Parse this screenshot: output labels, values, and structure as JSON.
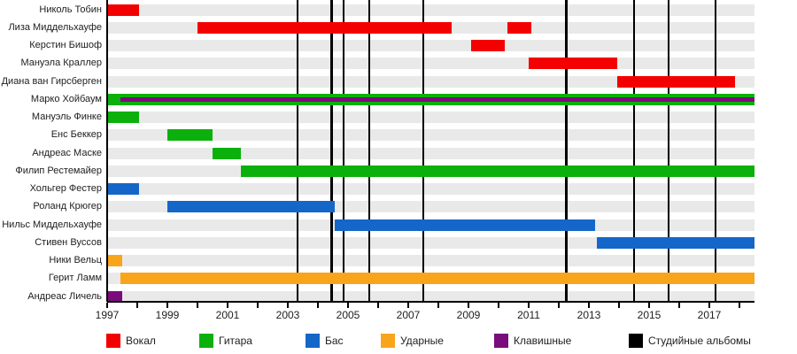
{
  "colors": {
    "vocals": "#f30000",
    "guitar": "#0cb00c",
    "bass": "#1467c8",
    "drums": "#f9a51b",
    "keyboards": "#7b0c7b",
    "albums": "#000000",
    "row_track": "#e9e9e9",
    "axis": "#000000",
    "background": "#ffffff"
  },
  "chart_data": {
    "type": "bar",
    "subtype": "band-membership-gantt-timeline",
    "title": "",
    "x_axis": {
      "start": 1997,
      "end": 2018.5,
      "tick_every_years": 1,
      "labeled_ticks": [
        "1997",
        "1999",
        "2001",
        "2003",
        "2005",
        "2007",
        "2009",
        "2011",
        "2013",
        "2015",
        "2017"
      ]
    },
    "rows": [
      {
        "name": "Николь Тобин",
        "bars": [
          {
            "from": 1997.0,
            "to": 1998.05,
            "role": "vocals"
          }
        ]
      },
      {
        "name": "Лиза Миддельхауфе",
        "bars": [
          {
            "from": 2000.0,
            "to": 2008.45,
            "role": "vocals"
          },
          {
            "from": 2010.3,
            "to": 2011.1,
            "role": "vocals"
          }
        ]
      },
      {
        "name": "Керстин Бишоф",
        "bars": [
          {
            "from": 2009.1,
            "to": 2010.2,
            "role": "vocals"
          }
        ]
      },
      {
        "name": "Мануэла Краллер",
        "bars": [
          {
            "from": 2011.0,
            "to": 2013.95,
            "role": "vocals"
          }
        ]
      },
      {
        "name": "Диана ван Гирсберген",
        "bars": [
          {
            "from": 2013.95,
            "to": 2017.85,
            "role": "vocals"
          }
        ]
      },
      {
        "name": "Марко Хойбаум",
        "bars": [
          {
            "from": 1997.0,
            "to": 2018.5,
            "role": "guitar"
          },
          {
            "from": 1997.45,
            "to": 2018.5,
            "role": "keyboards",
            "overlay": true
          }
        ]
      },
      {
        "name": "Мануэль Финке",
        "bars": [
          {
            "from": 1997.0,
            "to": 1998.05,
            "role": "guitar"
          }
        ]
      },
      {
        "name": "Енс Беккер",
        "bars": [
          {
            "from": 1999.0,
            "to": 2000.5,
            "role": "guitar"
          }
        ]
      },
      {
        "name": "Андреас Маске",
        "bars": [
          {
            "from": 2000.5,
            "to": 2001.45,
            "role": "guitar"
          }
        ]
      },
      {
        "name": "Филип Рестемайер",
        "bars": [
          {
            "from": 2001.45,
            "to": 2018.5,
            "role": "guitar"
          }
        ]
      },
      {
        "name": "Хольгер Фестер",
        "bars": [
          {
            "from": 1997.0,
            "to": 1998.05,
            "role": "bass"
          }
        ]
      },
      {
        "name": "Роланд Крюгер",
        "bars": [
          {
            "from": 1999.0,
            "to": 2004.55,
            "role": "bass"
          }
        ]
      },
      {
        "name": "Нильс Миддельхауфе",
        "bars": [
          {
            "from": 2004.55,
            "to": 2013.2,
            "role": "bass"
          }
        ]
      },
      {
        "name": "Стивен Вуссов",
        "bars": [
          {
            "from": 2013.25,
            "to": 2018.5,
            "role": "bass"
          }
        ]
      },
      {
        "name": "Ники Вельц",
        "bars": [
          {
            "from": 1997.0,
            "to": 1997.5,
            "role": "drums"
          }
        ]
      },
      {
        "name": "Герит Ламм",
        "bars": [
          {
            "from": 1997.45,
            "to": 2018.5,
            "role": "drums"
          }
        ]
      },
      {
        "name": "Андреас Личель",
        "bars": [
          {
            "from": 1997.0,
            "to": 1997.5,
            "role": "keyboards"
          }
        ]
      }
    ],
    "album_release_lines": [
      2003.32,
      2004.45,
      2004.85,
      2005.7,
      2007.5,
      2012.25,
      2014.5,
      2015.65,
      2017.2
    ],
    "legend": [
      {
        "label": "Вокал",
        "color_key": "vocals"
      },
      {
        "label": "Гитара",
        "color_key": "guitar"
      },
      {
        "label": "Бас",
        "color_key": "bass"
      },
      {
        "label": "Ударные",
        "color_key": "drums"
      },
      {
        "label": "Клавишные",
        "color_key": "keyboards"
      },
      {
        "label": "Студийные альбомы",
        "color_key": "albums"
      }
    ],
    "legend_position": "bottom"
  }
}
